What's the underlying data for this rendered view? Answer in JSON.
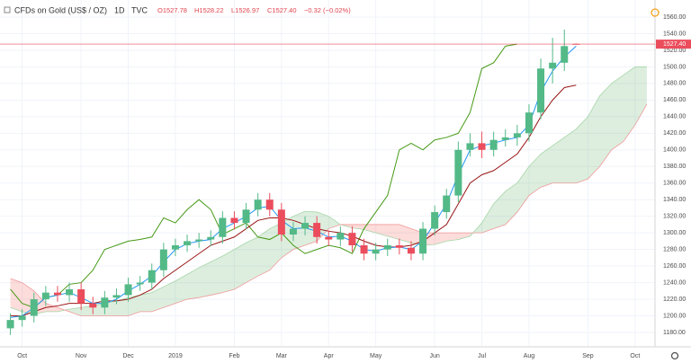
{
  "chart_data": {
    "type": "candlestick",
    "header": {
      "symbol": "CFDs on Gold (US$ / OZ)",
      "interval": "1D",
      "source": "TVC",
      "open": "O1527.78",
      "high": "H1528.22",
      "low": "L1526.97",
      "close": "C1527.40",
      "change": "−0.32 (−0.02%)"
    },
    "last_price_label": "1527.40",
    "categories": [
      null,
      "Oct",
      null,
      null,
      null,
      null,
      "Nov",
      null,
      null,
      null,
      "Dec",
      null,
      null,
      null,
      "2019",
      null,
      null,
      null,
      null,
      "Feb",
      null,
      null,
      null,
      "Mar",
      null,
      null,
      null,
      "Apr",
      null,
      null,
      null,
      "May",
      null,
      null,
      null,
      null,
      "Jun",
      null,
      null,
      null,
      "Jul",
      null,
      null,
      null,
      "Aug",
      null,
      null,
      null,
      null,
      "Sep",
      null,
      null,
      null,
      "Oct",
      null
    ],
    "candles": {
      "up_color": "#53b987",
      "down_color": "#eb4d5c",
      "open": [
        1185,
        1195,
        1200,
        1220,
        1228,
        1225,
        1232,
        1215,
        1210,
        1222,
        1225,
        1238,
        1240,
        1255,
        1280,
        1285,
        1290,
        1292,
        1295,
        1318,
        1312,
        1328,
        1340,
        1328,
        1298,
        1305,
        1312,
        1295,
        1292,
        1300,
        1285,
        1275,
        1280,
        1285,
        1282,
        1275,
        1305,
        1325,
        1345,
        1400,
        1408,
        1400,
        1412,
        1415,
        1420,
        1445,
        1498,
        1505,
        1527.78,
        null,
        null,
        null,
        null,
        null,
        null
      ],
      "high": [
        1203,
        1208,
        1228,
        1236,
        1236,
        1240,
        1240,
        1223,
        1230,
        1233,
        1246,
        1248,
        1263,
        1288,
        1293,
        1298,
        1300,
        1303,
        1326,
        1326,
        1336,
        1348,
        1348,
        1336,
        1313,
        1320,
        1320,
        1303,
        1308,
        1308,
        1293,
        1288,
        1293,
        1293,
        1290,
        1313,
        1333,
        1353,
        1410,
        1420,
        1422,
        1422,
        1425,
        1430,
        1455,
        1510,
        1535,
        1545,
        1528.22,
        null,
        null,
        null,
        null,
        null,
        null
      ],
      "low": [
        1177,
        1187,
        1192,
        1212,
        1217,
        1217,
        1207,
        1202,
        1202,
        1214,
        1217,
        1230,
        1232,
        1247,
        1272,
        1277,
        1282,
        1284,
        1287,
        1304,
        1304,
        1320,
        1320,
        1290,
        1290,
        1297,
        1287,
        1284,
        1284,
        1277,
        1267,
        1267,
        1272,
        1274,
        1267,
        1267,
        1297,
        1317,
        1337,
        1392,
        1390,
        1392,
        1404,
        1405,
        1410,
        1437,
        1480,
        1495,
        1526.97,
        null,
        null,
        null,
        null,
        null,
        null
      ],
      "close": [
        1195,
        1200,
        1220,
        1228,
        1225,
        1232,
        1215,
        1210,
        1222,
        1225,
        1238,
        1240,
        1255,
        1280,
        1285,
        1290,
        1292,
        1295,
        1318,
        1312,
        1328,
        1340,
        1328,
        1298,
        1305,
        1312,
        1295,
        1292,
        1300,
        1285,
        1275,
        1280,
        1285,
        1282,
        1275,
        1305,
        1325,
        1345,
        1400,
        1408,
        1400,
        1412,
        1415,
        1420,
        1445,
        1498,
        1505,
        1525,
        1527.4,
        null,
        null,
        null,
        null,
        null,
        null
      ]
    },
    "tenkan": {
      "color": "#2196f3",
      "values": [
        1198,
        1200,
        1210,
        1222,
        1225,
        1228,
        1222,
        1215,
        1215,
        1220,
        1230,
        1238,
        1248,
        1265,
        1280,
        1287,
        1290,
        1292,
        1305,
        1312,
        1320,
        1330,
        1332,
        1315,
        1305,
        1306,
        1302,
        1295,
        1296,
        1290,
        1280,
        1278,
        1282,
        1283,
        1280,
        1290,
        1312,
        1335,
        1370,
        1400,
        1405,
        1408,
        1412,
        1415,
        1430,
        1470,
        1495,
        1512,
        1525,
        null,
        null,
        null,
        null,
        null,
        null
      ]
    },
    "kijun": {
      "color": "#991515",
      "values": [
        1200,
        1200,
        1205,
        1210,
        1212,
        1215,
        1215,
        1215,
        1218,
        1218,
        1220,
        1225,
        1232,
        1245,
        1255,
        1265,
        1275,
        1285,
        1290,
        1295,
        1305,
        1315,
        1318,
        1318,
        1315,
        1310,
        1305,
        1302,
        1300,
        1296,
        1290,
        1285,
        1283,
        1283,
        1285,
        1290,
        1300,
        1310,
        1335,
        1360,
        1370,
        1375,
        1385,
        1395,
        1415,
        1440,
        1460,
        1475,
        1478,
        null,
        null,
        null,
        null,
        null,
        null
      ]
    },
    "chikou": {
      "color": "#459915",
      "values": [
        1232,
        1215,
        1210,
        1222,
        1225,
        1238,
        1240,
        1255,
        1280,
        1285,
        1290,
        1292,
        1295,
        1318,
        1312,
        1328,
        1340,
        1328,
        1298,
        1305,
        1312,
        1295,
        1292,
        1300,
        1285,
        1275,
        1280,
        1285,
        1282,
        1275,
        1305,
        1325,
        1345,
        1400,
        1408,
        1400,
        1412,
        1415,
        1420,
        1445,
        1498,
        1505,
        1525,
        1527.4,
        null,
        null,
        null,
        null,
        null,
        null,
        null,
        null,
        null,
        null,
        null
      ]
    },
    "span_a": {
      "color": "#a5d6a7",
      "values": [
        1210,
        1205,
        1202,
        1205,
        1205,
        1208,
        1210,
        1212,
        1215,
        1218,
        1222,
        1225,
        1228,
        1235,
        1242,
        1250,
        1258,
        1265,
        1272,
        1280,
        1288,
        1295,
        1305,
        1312,
        1320,
        1326,
        1325,
        1320,
        1310,
        1306,
        1304,
        1300,
        1296,
        1292,
        1288,
        1285,
        1286,
        1290,
        1292,
        1296,
        1312,
        1335,
        1350,
        1360,
        1380,
        1395,
        1405,
        1415,
        1425,
        1440,
        1465,
        1480,
        1490,
        1500,
        1500
      ]
    },
    "span_b": {
      "color": "#ef9a9a",
      "values": [
        1245,
        1240,
        1230,
        1215,
        1210,
        1205,
        1200,
        1200,
        1200,
        1200,
        1200,
        1205,
        1205,
        1210,
        1215,
        1220,
        1222,
        1225,
        1228,
        1232,
        1240,
        1248,
        1255,
        1270,
        1280,
        1285,
        1290,
        1305,
        1310,
        1310,
        1310,
        1310,
        1310,
        1310,
        1305,
        1300,
        1300,
        1300,
        1300,
        1300,
        1300,
        1305,
        1310,
        1325,
        1345,
        1355,
        1360,
        1360,
        1360,
        1365,
        1380,
        1400,
        1410,
        1430,
        1455
      ]
    },
    "cloud_up_color": "rgba(67,160,71,0.18)",
    "cloud_down_color": "rgba(244,67,54,0.18)",
    "ylim": [
      1180,
      1560
    ],
    "yticks": [
      {
        "value": 1180,
        "label": "1180.00"
      },
      {
        "value": 1200,
        "label": "1200.00"
      },
      {
        "value": 1220,
        "label": "1220.00"
      },
      {
        "value": 1240,
        "label": "1240.00"
      },
      {
        "value": 1260,
        "label": "1260.00"
      },
      {
        "value": 1280,
        "label": "1280.00"
      },
      {
        "value": 1300,
        "label": "1300.00"
      },
      {
        "value": 1320,
        "label": "1320.00"
      },
      {
        "value": 1340,
        "label": "1340.00"
      },
      {
        "value": 1360,
        "label": "1360.00"
      },
      {
        "value": 1380,
        "label": "1380.00"
      },
      {
        "value": 1400,
        "label": "1400.00"
      },
      {
        "value": 1420,
        "label": "1420.00"
      },
      {
        "value": 1440,
        "label": "1440.00"
      },
      {
        "value": 1460,
        "label": "1460.00"
      },
      {
        "value": 1480,
        "label": "1480.00"
      },
      {
        "value": 1500,
        "label": "1500.00"
      },
      {
        "value": 1520,
        "label": "1520.00"
      },
      {
        "value": 1540,
        "label": "1540.00"
      },
      {
        "value": 1560,
        "label": "1560.00"
      }
    ],
    "grid": true
  }
}
